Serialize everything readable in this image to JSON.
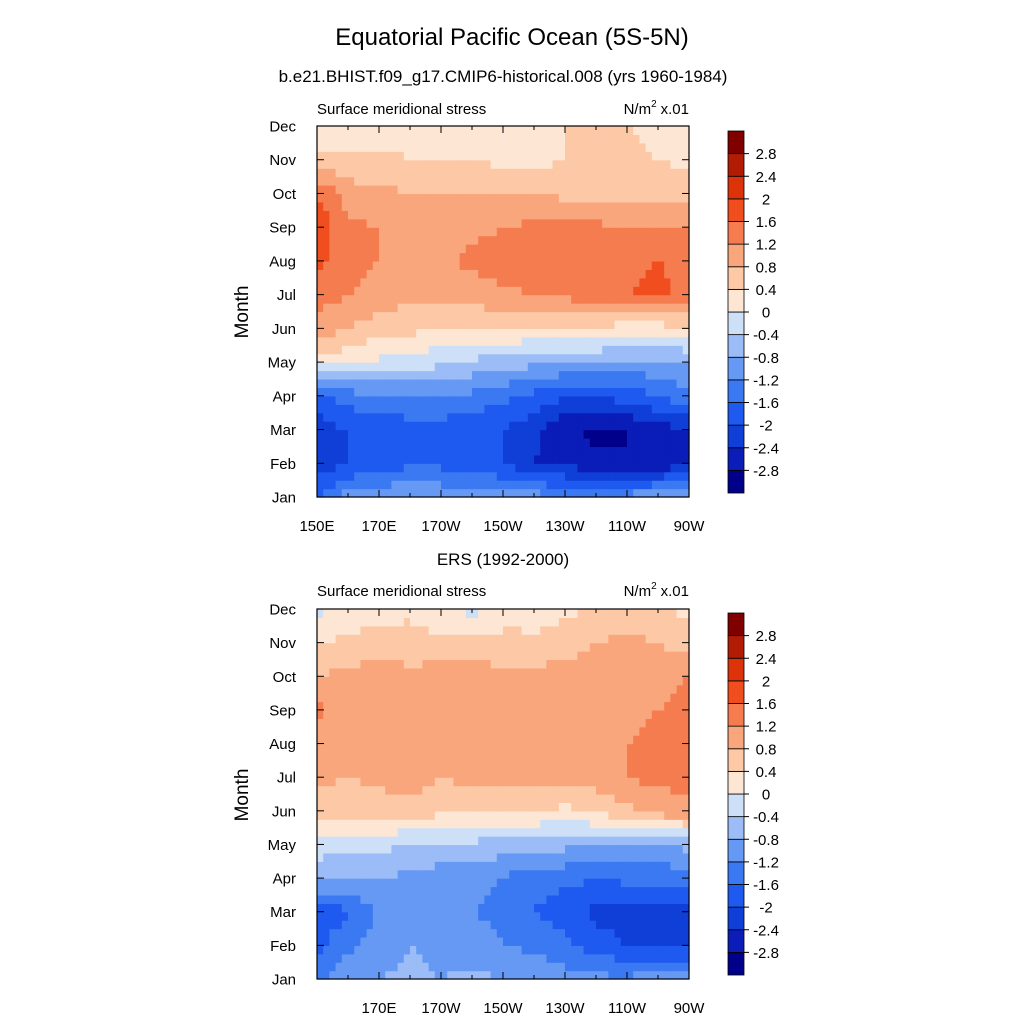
{
  "figure": {
    "title": "Equatorial Pacific Ocean (5S-5N)",
    "panel1_title": "b.e21.BHIST.f09_g17.CMIP6-historical.008 (yrs 1960-1984)",
    "panel2_title": "ERS (1992-2000)"
  },
  "palette": {
    "levels": [
      -2.8,
      -2.4,
      -2.0,
      -1.6,
      -1.2,
      -0.8,
      -0.4,
      0,
      0.4,
      0.8,
      1.2,
      1.6,
      2.0,
      2.4,
      2.8
    ],
    "colors": [
      "#00008b",
      "#0a1db8",
      "#0f3fd6",
      "#1f5af0",
      "#3b79f2",
      "#6699f4",
      "#9bbcf6",
      "#cde0f8",
      "#fde6d3",
      "#fcc8a6",
      "#f9a67c",
      "#f57c4f",
      "#f04e1e",
      "#dd3308",
      "#b31c04",
      "#800000"
    ],
    "tick_labels": [
      "-2.8",
      "-2.4",
      "-2",
      "-1.6",
      "-1.2",
      "-0.8",
      "-0.4",
      "0",
      "0.4",
      "0.8",
      "1.2",
      "1.6",
      "2",
      "2.4",
      "2.8"
    ]
  },
  "chart_data": [
    {
      "type": "heatmap",
      "title": "b.e21.BHIST.f09_g17.CMIP6-historical.008 (yrs 1960-1984)",
      "left_label": "Surface meridional stress",
      "units_base": "N/m",
      "units_sup": "2",
      "units_scale": "x.01",
      "ylabel": "Month",
      "xlabel": "",
      "x_range": [
        150,
        270
      ],
      "x_ticks": [
        150,
        170,
        190,
        210,
        230,
        250,
        270
      ],
      "x_tick_labels": [
        "150E",
        "170E",
        "170W",
        "150W",
        "130W",
        "110W",
        "90W"
      ],
      "y_tick_labels": [
        "Jan",
        "Feb",
        "Mar",
        "Apr",
        "May",
        "Jun",
        "Jul",
        "Aug",
        "Sep",
        "Oct",
        "Nov",
        "Dec"
      ],
      "x": [
        150,
        160,
        170,
        180,
        190,
        200,
        210,
        220,
        230,
        240,
        250,
        260,
        270
      ],
      "months": [
        1,
        2,
        3,
        4,
        5,
        6,
        7,
        8,
        9,
        10,
        11,
        12
      ],
      "values": [
        [
          -1.6,
          -1.0,
          -0.9,
          -0.8,
          -0.9,
          -0.9,
          -1.0,
          -1.0,
          -1.2,
          -1.0,
          -1.0,
          -0.9,
          -0.8
        ],
        [
          -2.3,
          -2.0,
          -1.8,
          -1.7,
          -1.7,
          -1.8,
          -2.0,
          -2.4,
          -2.5,
          -2.7,
          -2.8,
          -2.7,
          -2.5
        ],
        [
          -2.2,
          -2.0,
          -1.9,
          -1.8,
          -1.8,
          -1.9,
          -2.0,
          -2.3,
          -2.7,
          -2.9,
          -2.8,
          -2.6,
          -2.4
        ],
        [
          -1.8,
          -1.4,
          -1.3,
          -1.2,
          -1.2,
          -1.3,
          -1.5,
          -1.7,
          -2.0,
          -2.0,
          -1.8,
          -1.6,
          -1.3
        ],
        [
          0.2,
          0.1,
          -0.1,
          -0.2,
          -0.3,
          -0.5,
          -0.6,
          -0.7,
          -0.8,
          -0.8,
          -0.9,
          -0.9,
          -0.8
        ],
        [
          1.0,
          0.8,
          0.6,
          0.5,
          0.4,
          0.4,
          0.4,
          0.4,
          0.3,
          0.3,
          0.2,
          0.2,
          0.3
        ],
        [
          1.4,
          1.2,
          1.0,
          0.9,
          0.9,
          1.0,
          1.1,
          1.2,
          1.3,
          1.4,
          1.6,
          1.7,
          1.5
        ],
        [
          1.7,
          1.4,
          1.2,
          1.1,
          1.1,
          1.3,
          1.4,
          1.5,
          1.5,
          1.5,
          1.5,
          1.6,
          1.5
        ],
        [
          1.9,
          1.3,
          1.2,
          1.1,
          1.1,
          1.1,
          1.2,
          1.3,
          1.3,
          1.3,
          1.2,
          1.2,
          1.2
        ],
        [
          1.6,
          1.0,
          0.9,
          0.8,
          0.8,
          0.8,
          0.8,
          0.8,
          0.7,
          0.6,
          0.7,
          0.7,
          0.6
        ],
        [
          0.5,
          0.5,
          0.5,
          0.4,
          0.4,
          0.4,
          0.3,
          0.3,
          0.4,
          0.5,
          0.5,
          0.4,
          0.3
        ],
        [
          -0.1,
          0.2,
          0.2,
          0.2,
          0.2,
          0.2,
          0.3,
          0.3,
          0.4,
          0.5,
          0.4,
          0.3,
          0.2
        ]
      ]
    },
    {
      "type": "heatmap",
      "title": "ERS (1992-2000)",
      "left_label": "Surface meridional stress",
      "units_base": "N/m",
      "units_sup": "2",
      "units_scale": "x.01",
      "ylabel": "Month",
      "xlabel": "",
      "x_range": [
        150,
        270
      ],
      "x_ticks": [
        170,
        190,
        210,
        230,
        250,
        270
      ],
      "x_tick_labels": [
        "170E",
        "170W",
        "150W",
        "130W",
        "110W",
        "90W"
      ],
      "y_tick_labels": [
        "Jan",
        "Feb",
        "Mar",
        "Apr",
        "May",
        "Jun",
        "Jul",
        "Aug",
        "Sep",
        "Oct",
        "Nov",
        "Dec"
      ],
      "x": [
        150,
        160,
        170,
        180,
        190,
        200,
        210,
        220,
        230,
        240,
        250,
        260,
        270
      ],
      "months": [
        1,
        2,
        3,
        4,
        5,
        6,
        7,
        8,
        9,
        10,
        11,
        12
      ],
      "values": [
        [
          -1.4,
          -0.9,
          -0.8,
          -0.7,
          -0.8,
          -0.7,
          -0.8,
          -0.9,
          -1.0,
          -1.1,
          -1.1,
          -1.0,
          -1.0
        ],
        [
          -1.7,
          -1.3,
          -1.0,
          -0.8,
          -0.9,
          -1.0,
          -1.2,
          -1.3,
          -1.5,
          -1.8,
          -2.0,
          -2.0,
          -2.0
        ],
        [
          -1.8,
          -1.7,
          -1.1,
          -0.9,
          -1.1,
          -1.2,
          -1.3,
          -1.6,
          -1.8,
          -2.1,
          -2.2,
          -2.2,
          -2.1
        ],
        [
          -0.7,
          -0.8,
          -0.8,
          -0.9,
          -1.0,
          -1.1,
          -1.2,
          -1.5,
          -1.5,
          -1.6,
          -1.5,
          -1.5,
          -1.4
        ],
        [
          -0.2,
          -0.3,
          -0.3,
          -0.4,
          -0.5,
          -0.5,
          -0.6,
          -0.6,
          -0.7,
          -0.8,
          -0.9,
          -0.8,
          -0.7
        ],
        [
          0.5,
          0.5,
          0.6,
          0.6,
          0.5,
          0.5,
          0.4,
          0.4,
          0.3,
          0.5,
          0.7,
          1.0,
          1.1
        ],
        [
          0.9,
          0.8,
          0.9,
          1.0,
          0.8,
          0.9,
          0.9,
          0.9,
          0.9,
          1.0,
          1.2,
          1.3,
          1.3
        ],
        [
          1.0,
          0.9,
          1.0,
          1.1,
          1.0,
          1.0,
          1.0,
          1.0,
          1.1,
          1.1,
          1.2,
          1.3,
          1.4
        ],
        [
          1.3,
          1.0,
          1.0,
          1.0,
          1.1,
          1.0,
          1.0,
          1.1,
          1.0,
          1.0,
          1.1,
          1.2,
          1.4
        ],
        [
          0.8,
          0.9,
          1.0,
          0.9,
          1.0,
          1.0,
          0.9,
          0.9,
          1.0,
          1.0,
          0.9,
          1.0,
          1.2
        ],
        [
          0.4,
          0.5,
          0.6,
          0.6,
          0.5,
          0.5,
          0.6,
          0.5,
          0.6,
          0.8,
          0.9,
          0.8,
          0.6
        ],
        [
          -0.1,
          0.1,
          0.2,
          0.3,
          0.1,
          -0.1,
          0.1,
          0.2,
          0.3,
          0.5,
          0.6,
          0.5,
          0.3
        ]
      ]
    }
  ]
}
